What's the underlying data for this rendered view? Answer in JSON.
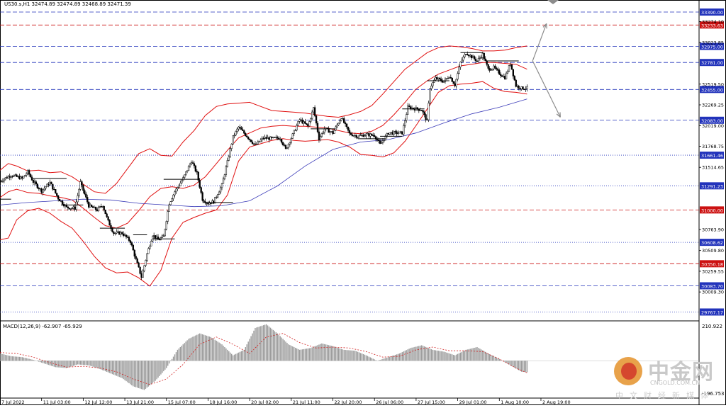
{
  "chart_data": {
    "type": "candlestick",
    "symbol_line": "US30.s,H1  32474.89 32474.89 32468.89 32471.39",
    "main_panel": {
      "ylim": [
        29660,
        33450
      ],
      "price_ticks": [
        "33274.10",
        "33023.85",
        "32519.50",
        "32269.25",
        "32019.00",
        "31768.75",
        "31514.65",
        "30763.90",
        "30509.80",
        "30259.55",
        "30009.30"
      ],
      "horizontal_levels": [
        {
          "value": 33390.0,
          "label": "33390.00",
          "color": "#2233bb",
          "style": "dashed"
        },
        {
          "value": 33233.63,
          "label": "33233.63",
          "color": "#cc1111",
          "style": "dashed"
        },
        {
          "value": 32975.0,
          "label": "32975.00",
          "color": "#2233bb",
          "style": "dashed"
        },
        {
          "value": 32781.0,
          "label": "32781.00",
          "color": "#2233bb",
          "style": "dashed"
        },
        {
          "value": 32455.0,
          "label": "32455.00",
          "color": "#2233bb",
          "style": "dashed"
        },
        {
          "value": 32083.0,
          "label": "32083.00",
          "color": "#2233bb",
          "style": "dashed"
        },
        {
          "value": 31661.46,
          "label": "31661.46",
          "color": "#2233bb",
          "style": "dotted"
        },
        {
          "value": 31291.23,
          "label": "31291.23",
          "color": "#2233bb",
          "style": "dotted"
        },
        {
          "value": 31000.0,
          "label": "31000.00",
          "color": "#cc1111",
          "style": "dashed"
        },
        {
          "value": 30608.62,
          "label": "30608.62",
          "color": "#2233bb",
          "style": "dotted"
        },
        {
          "value": 30350.18,
          "label": "30350.18",
          "color": "#cc1111",
          "style": "dashed"
        },
        {
          "value": 30083.7,
          "label": "30083.70",
          "color": "#2233bb",
          "style": "dashed"
        },
        {
          "value": 29767.17,
          "label": "29767.17",
          "color": "#2233bb",
          "style": "dotted"
        }
      ],
      "bollinger_series": {
        "x": [
          0,
          3,
          6,
          10,
          14,
          18,
          22,
          26,
          30,
          34,
          38,
          42,
          46,
          50,
          54,
          58,
          62,
          66,
          70,
          74,
          78,
          82,
          86,
          90,
          94,
          98,
          102,
          106,
          110,
          114,
          118,
          122,
          126,
          130,
          134,
          138,
          142,
          146,
          150,
          154,
          158,
          162,
          166,
          170,
          174,
          178,
          182,
          186,
          190
        ],
        "upper": [
          31480,
          31560,
          31530,
          31470,
          31480,
          31450,
          31460,
          31400,
          31310,
          31220,
          31200,
          31320,
          31500,
          31680,
          31740,
          31660,
          31650,
          31820,
          31960,
          32140,
          32250,
          32280,
          32290,
          32300,
          32250,
          32200,
          32190,
          32180,
          32170,
          32150,
          32130,
          32120,
          32150,
          32190,
          32260,
          32400,
          32550,
          32700,
          32800,
          32900,
          32960,
          32980,
          32970,
          32950,
          32920,
          32920,
          32930,
          32960,
          32980
        ],
        "middle": [
          31150,
          31220,
          31250,
          31210,
          31200,
          31170,
          31150,
          31120,
          31020,
          30910,
          30810,
          30780,
          30840,
          30990,
          31160,
          31260,
          31280,
          31260,
          31300,
          31400,
          31560,
          31720,
          31870,
          31930,
          31990,
          32010,
          32020,
          32010,
          32010,
          32000,
          31990,
          31960,
          31930,
          31920,
          31950,
          32020,
          32150,
          32300,
          32460,
          32560,
          32640,
          32690,
          32740,
          32760,
          32780,
          32780,
          32770,
          32760,
          32700
        ],
        "lower": [
          30640,
          30660,
          30880,
          30990,
          31020,
          30960,
          30860,
          30780,
          30620,
          30440,
          30300,
          30240,
          30250,
          30180,
          30080,
          30270,
          30660,
          30850,
          30910,
          30960,
          31000,
          31180,
          31590,
          31760,
          31800,
          31840,
          31860,
          31840,
          31830,
          31840,
          31850,
          31820,
          31760,
          31670,
          31660,
          31640,
          31690,
          31830,
          32020,
          32220,
          32420,
          32500,
          32520,
          32530,
          32550,
          32470,
          32430,
          32420,
          32400
        ]
      },
      "moving_average_series": {
        "x": [
          0,
          10,
          20,
          30,
          40,
          50,
          60,
          70,
          80,
          90,
          100,
          110,
          120,
          130,
          140,
          150,
          160,
          170,
          180,
          190
        ],
        "values": [
          31060,
          31090,
          31110,
          31130,
          31120,
          31080,
          31060,
          31040,
          31050,
          31110,
          31290,
          31530,
          31730,
          31820,
          31850,
          31930,
          32050,
          32160,
          32240,
          32340
        ]
      },
      "candles": {
        "first_x": 0,
        "last_x": 190,
        "close_path": [
          {
            "x": 0,
            "value": 31350
          },
          {
            "x": 4,
            "value": 31420
          },
          {
            "x": 8,
            "value": 31380
          },
          {
            "x": 10,
            "value": 31460
          },
          {
            "x": 12,
            "value": 31340
          },
          {
            "x": 15,
            "value": 31230
          },
          {
            "x": 18,
            "value": 31330
          },
          {
            "x": 21,
            "value": 31140
          },
          {
            "x": 24,
            "value": 31030
          },
          {
            "x": 27,
            "value": 31020
          },
          {
            "x": 29,
            "value": 31330
          },
          {
            "x": 32,
            "value": 31050
          },
          {
            "x": 35,
            "value": 31000
          },
          {
            "x": 37,
            "value": 31060
          },
          {
            "x": 39,
            "value": 30860
          },
          {
            "x": 41,
            "value": 30720
          },
          {
            "x": 44,
            "value": 30720
          },
          {
            "x": 47,
            "value": 30620
          },
          {
            "x": 49,
            "value": 30400
          },
          {
            "x": 51,
            "value": 30190
          },
          {
            "x": 53,
            "value": 30470
          },
          {
            "x": 55,
            "value": 30700
          },
          {
            "x": 57,
            "value": 30640
          },
          {
            "x": 59,
            "value": 30680
          },
          {
            "x": 61,
            "value": 31080
          },
          {
            "x": 63,
            "value": 31220
          },
          {
            "x": 66,
            "value": 31380
          },
          {
            "x": 69,
            "value": 31590
          },
          {
            "x": 71,
            "value": 31440
          },
          {
            "x": 73,
            "value": 31130
          },
          {
            "x": 75,
            "value": 31080
          },
          {
            "x": 77,
            "value": 31100
          },
          {
            "x": 80,
            "value": 31300
          },
          {
            "x": 82,
            "value": 31580
          },
          {
            "x": 84,
            "value": 31880
          },
          {
            "x": 86,
            "value": 32000
          },
          {
            "x": 89,
            "value": 31890
          },
          {
            "x": 92,
            "value": 31780
          },
          {
            "x": 95,
            "value": 31870
          },
          {
            "x": 98,
            "value": 31860
          },
          {
            "x": 101,
            "value": 31870
          },
          {
            "x": 103,
            "value": 31730
          },
          {
            "x": 105,
            "value": 31870
          },
          {
            "x": 108,
            "value": 32090
          },
          {
            "x": 111,
            "value": 32010
          },
          {
            "x": 113,
            "value": 32230
          },
          {
            "x": 115,
            "value": 31860
          },
          {
            "x": 117,
            "value": 31980
          },
          {
            "x": 120,
            "value": 31930
          },
          {
            "x": 123,
            "value": 32120
          },
          {
            "x": 126,
            "value": 31920
          },
          {
            "x": 129,
            "value": 31890
          },
          {
            "x": 132,
            "value": 31910
          },
          {
            "x": 135,
            "value": 31900
          },
          {
            "x": 137,
            "value": 31790
          },
          {
            "x": 140,
            "value": 31930
          },
          {
            "x": 143,
            "value": 31930
          },
          {
            "x": 145,
            "value": 31930
          },
          {
            "x": 147,
            "value": 32240
          },
          {
            "x": 150,
            "value": 32220
          },
          {
            "x": 152,
            "value": 32210
          },
          {
            "x": 154,
            "value": 32070
          },
          {
            "x": 155,
            "value": 32480
          },
          {
            "x": 157,
            "value": 32590
          },
          {
            "x": 160,
            "value": 32550
          },
          {
            "x": 162,
            "value": 32620
          },
          {
            "x": 164,
            "value": 32510
          },
          {
            "x": 166,
            "value": 32780
          },
          {
            "x": 168,
            "value": 32900
          },
          {
            "x": 170,
            "value": 32850
          },
          {
            "x": 172,
            "value": 32800
          },
          {
            "x": 174,
            "value": 32880
          },
          {
            "x": 176,
            "value": 32700
          },
          {
            "x": 178,
            "value": 32720
          },
          {
            "x": 180,
            "value": 32650
          },
          {
            "x": 182,
            "value": 32600
          },
          {
            "x": 184,
            "value": 32770
          },
          {
            "x": 186,
            "value": 32500
          },
          {
            "x": 188,
            "value": 32470
          },
          {
            "x": 190,
            "value": 32471
          }
        ],
        "bull_color": "#000000",
        "bear_color": "#000000"
      },
      "horizontal_box_lines": [
        {
          "x_start": 0,
          "x_end": 4,
          "value": 31130
        },
        {
          "x_start": 12,
          "x_end": 24,
          "value": 31380
        },
        {
          "x_start": 22,
          "x_end": 30,
          "value": 31060
        },
        {
          "x_start": 36,
          "x_end": 45,
          "value": 30780
        },
        {
          "x_start": 48,
          "x_end": 53,
          "value": 30700
        },
        {
          "x_start": 55,
          "x_end": 63,
          "value": 30650
        },
        {
          "x_start": 59,
          "x_end": 72,
          "value": 31370
        },
        {
          "x_start": 73,
          "x_end": 84,
          "value": 31090
        },
        {
          "x_start": 112,
          "x_end": 121,
          "value": 31980
        },
        {
          "x_start": 129,
          "x_end": 139,
          "value": 31860
        },
        {
          "x_start": 137,
          "x_end": 145,
          "value": 31890
        },
        {
          "x_start": 145,
          "x_end": 153,
          "value": 32220
        },
        {
          "x_start": 154,
          "x_end": 162,
          "value": 32560
        },
        {
          "x_start": 166,
          "x_end": 174,
          "value": 32900
        },
        {
          "x_start": 175,
          "x_end": 187,
          "value": 32800
        }
      ],
      "projection_arrows": [
        {
          "from": {
            "x": 192,
            "value": 32800
          },
          "to": {
            "x": 197,
            "value": 33250
          },
          "color": "#8c8c8c"
        },
        {
          "from": {
            "x": 192,
            "value": 32800
          },
          "to": {
            "x": 202,
            "value": 32120
          },
          "color": "#8c8c8c"
        }
      ]
    },
    "macd_panel": {
      "label": "MACD(12,26,9) -62.907 -65.929",
      "top_value_label": "210.922",
      "bottom_value_label": "-196.753",
      "ylim": [
        -196.753,
        210.922
      ],
      "histogram": {
        "x": [
          0,
          4,
          8,
          12,
          16,
          20,
          24,
          28,
          32,
          36,
          40,
          44,
          48,
          52,
          56,
          60,
          64,
          68,
          72,
          76,
          80,
          84,
          88,
          92,
          96,
          100,
          104,
          108,
          112,
          116,
          120,
          124,
          128,
          132,
          136,
          140,
          144,
          148,
          152,
          156,
          160,
          164,
          168,
          172,
          176,
          180,
          184,
          188,
          190
        ],
        "values": [
          40,
          25,
          20,
          5,
          -15,
          -35,
          -40,
          -20,
          -25,
          -45,
          -70,
          -95,
          -140,
          -160,
          -110,
          -40,
          60,
          120,
          150,
          130,
          90,
          30,
          60,
          180,
          200,
          150,
          90,
          60,
          70,
          95,
          80,
          60,
          55,
          30,
          0,
          20,
          40,
          70,
          85,
          60,
          50,
          30,
          60,
          75,
          40,
          10,
          -25,
          -60,
          -62.9
        ]
      },
      "signal": {
        "x": [
          0,
          6,
          12,
          18,
          24,
          30,
          36,
          42,
          48,
          54,
          60,
          66,
          72,
          78,
          84,
          90,
          96,
          102,
          108,
          114,
          120,
          126,
          132,
          138,
          144,
          150,
          156,
          162,
          168,
          174,
          180,
          186,
          190
        ],
        "values": [
          45,
          40,
          20,
          -10,
          -35,
          -30,
          -40,
          -60,
          -100,
          -130,
          -100,
          -20,
          90,
          130,
          90,
          40,
          130,
          150,
          100,
          70,
          75,
          70,
          50,
          20,
          25,
          60,
          75,
          55,
          55,
          50,
          10,
          -40,
          -65.9
        ]
      }
    },
    "x_axis": {
      "tick_labels": [
        {
          "x": 0,
          "label": "7 Jul 2022"
        },
        {
          "x": 15,
          "label": "11 Jul 03:00"
        },
        {
          "x": 30,
          "label": "12 Jul 12:00"
        },
        {
          "x": 45,
          "label": "13 Jul 21:00"
        },
        {
          "x": 60,
          "label": "15 Jul 07:00"
        },
        {
          "x": 75,
          "label": "18 Jul 16:00"
        },
        {
          "x": 90,
          "label": "20 Jul 02:00"
        },
        {
          "x": 105,
          "label": "21 Jul 11:00"
        },
        {
          "x": 120,
          "label": "22 Jul 20:00"
        },
        {
          "x": 135,
          "label": "26 Jul 06:00"
        },
        {
          "x": 150,
          "label": "27 Jul 15:00"
        },
        {
          "x": 165,
          "label": "29 Jul 01:00"
        },
        {
          "x": 180,
          "label": "1 Aug 10:00"
        },
        {
          "x": 195,
          "label": "2 Aug 19:00"
        }
      ],
      "xlim": [
        0,
        252
      ]
    },
    "grid": false,
    "colors": {
      "bollinger": "#e01010",
      "moving_average": "#3a3ab8",
      "candles": "#000000",
      "macd_hist": "#9a9a9a",
      "macd_signal": "#d02020"
    }
  },
  "watermark": {
    "name": "中金网",
    "domain": "CNGOLD.COM.CN",
    "tagline": "中文财经新媒体"
  }
}
